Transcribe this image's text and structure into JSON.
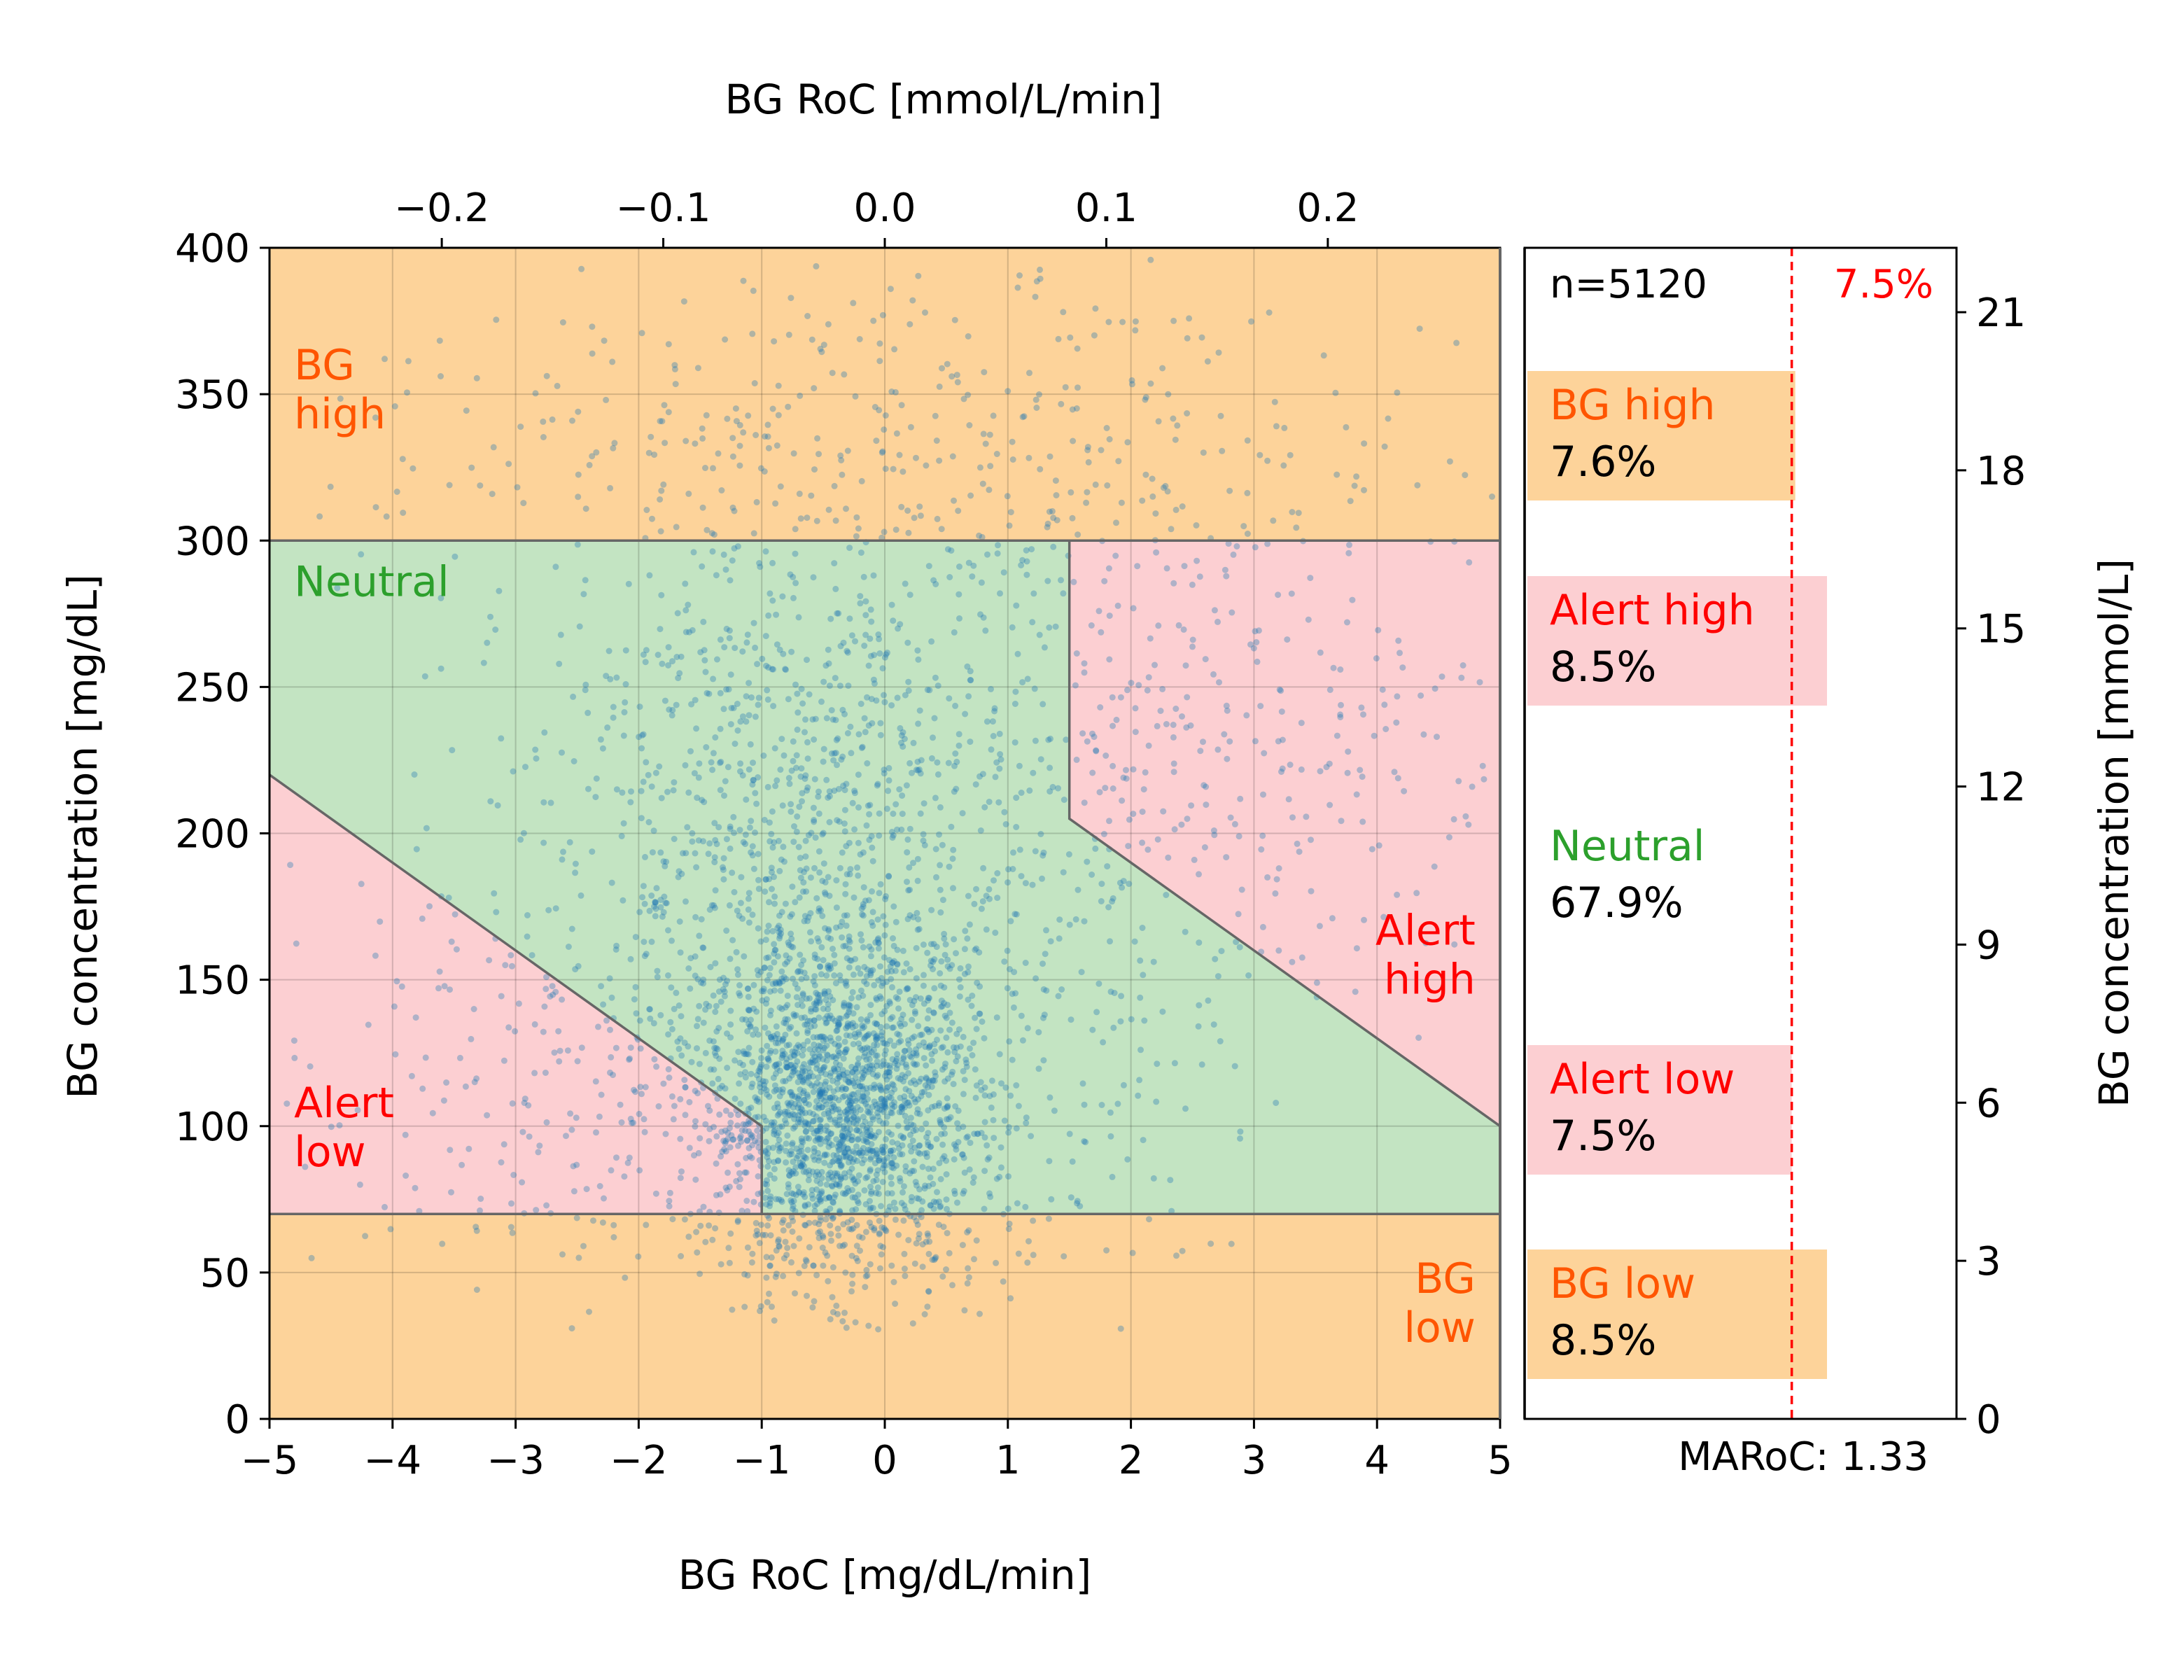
{
  "chart_data": {
    "type": "scatter",
    "xlabel": "BG RoC [mg/dL/min]",
    "ylabel": "BG concentration [mg/dL]",
    "xlabel_top": "BG RoC [mmol/L/min]",
    "ylabel_right": "BG concentration [mmol/L]",
    "xlim": [
      -5,
      5
    ],
    "ylim": [
      0,
      400
    ],
    "x_ticks": [
      -5,
      -4,
      -3,
      -2,
      -1,
      0,
      1,
      2,
      3,
      4,
      5
    ],
    "x_tick_labels": [
      "−5",
      "−4",
      "−3",
      "−2",
      "−1",
      "0",
      "1",
      "2",
      "3",
      "4",
      "5"
    ],
    "y_ticks": [
      0,
      50,
      100,
      150,
      200,
      250,
      300,
      350,
      400
    ],
    "y_tick_labels": [
      "0",
      "50",
      "100",
      "150",
      "200",
      "250",
      "300",
      "350",
      "400"
    ],
    "top_ticks_mmol": [
      -0.2,
      -0.1,
      0.0,
      0.1,
      0.2
    ],
    "top_tick_labels": [
      "−0.2",
      "−0.1",
      "0.0",
      "0.1",
      "0.2"
    ],
    "right_ticks_mmol": [
      0,
      3,
      6,
      9,
      12,
      15,
      18,
      21
    ],
    "right_tick_labels": [
      "0",
      "3",
      "6",
      "9",
      "12",
      "15",
      "18",
      "21"
    ],
    "mgdl_per_mmol": 18.0,
    "grid": true,
    "zones": [
      {
        "name": "BG high",
        "color": "#fdd39a",
        "polygon": [
          [
            -5,
            300
          ],
          [
            5,
            300
          ],
          [
            5,
            400
          ],
          [
            -5,
            400
          ]
        ]
      },
      {
        "name": "BG low",
        "color": "#fdd39a",
        "polygon": [
          [
            -5,
            0
          ],
          [
            5,
            0
          ],
          [
            5,
            70
          ],
          [
            -5,
            70
          ]
        ]
      },
      {
        "name": "Neutral",
        "color": "#c3e4c2",
        "polygon": [
          [
            -5,
            300
          ],
          [
            1.5,
            300
          ],
          [
            1.5,
            205
          ],
          [
            5,
            100
          ],
          [
            5,
            70
          ],
          [
            -1,
            70
          ],
          [
            -1,
            100
          ],
          [
            -5,
            220
          ]
        ]
      },
      {
        "name": "Alert high",
        "color": "#fccfd2",
        "polygon": [
          [
            1.5,
            300
          ],
          [
            5,
            300
          ],
          [
            5,
            100
          ],
          [
            1.5,
            205
          ]
        ]
      },
      {
        "name": "Alert low",
        "color": "#fccfd2",
        "polygon": [
          [
            -5,
            220
          ],
          [
            -1,
            100
          ],
          [
            -1,
            70
          ],
          [
            -5,
            70
          ]
        ]
      }
    ],
    "zone_labels": [
      {
        "text": "BG\nhigh",
        "color": "#ff5500",
        "x": -4.8,
        "y": 355,
        "anchor": "start"
      },
      {
        "text": "Neutral",
        "color": "#2ca02c",
        "x": -4.8,
        "y": 281,
        "anchor": "start"
      },
      {
        "text": "Alert\nhigh",
        "color": "#ff0000",
        "x": 4.8,
        "y": 162,
        "anchor": "end"
      },
      {
        "text": "Alert\nlow",
        "color": "#ff0000",
        "x": -4.8,
        "y": 103,
        "anchor": "start"
      },
      {
        "text": "BG\nlow",
        "color": "#ff5500",
        "x": 4.8,
        "y": 43,
        "anchor": "end"
      }
    ],
    "scatter": {
      "n": 5120,
      "color": "#1f77b4",
      "opacity": 0.35,
      "clusters": [
        {
          "weight": 0.42,
          "mx": -0.35,
          "sx": 0.55,
          "my": 105,
          "sy": 28
        },
        {
          "weight": 0.22,
          "mx": -0.8,
          "sx": 1.0,
          "my": 200,
          "sy": 55
        },
        {
          "weight": 0.14,
          "mx": 0.3,
          "sx": 1.3,
          "my": 150,
          "sy": 70
        },
        {
          "weight": 0.1,
          "mx": 0.0,
          "sx": 2.2,
          "my": 330,
          "sy": 35
        },
        {
          "weight": 0.07,
          "mx": 3.0,
          "sx": 1.3,
          "my": 230,
          "sy": 45
        },
        {
          "weight": 0.05,
          "mx": -3.0,
          "sx": 1.2,
          "my": 110,
          "sy": 40
        }
      ]
    },
    "summary_panel": {
      "n_label": "n=5120",
      "threshold_label": "7.5%",
      "threshold_value": 7.5,
      "maroc_label": "MARoC: 1.33",
      "bars": [
        {
          "name": "BG high",
          "value_label": "7.6%",
          "value": 7.6,
          "name_color": "#ff5500",
          "bar_color": "#fdd39a"
        },
        {
          "name": "Alert high",
          "value_label": "8.5%",
          "value": 8.5,
          "name_color": "#ff0000",
          "bar_color": "#fccfd2"
        },
        {
          "name": "Neutral",
          "value_label": "67.9%",
          "value": 67.9,
          "name_color": "#2ca02c",
          "bar_color": "none"
        },
        {
          "name": "Alert low",
          "value_label": "7.5%",
          "value": 7.5,
          "name_color": "#ff0000",
          "bar_color": "#fccfd2"
        },
        {
          "name": "BG low",
          "value_label": "8.5%",
          "value": 8.5,
          "name_color": "#ff5500",
          "bar_color": "#fdd39a"
        }
      ]
    }
  }
}
